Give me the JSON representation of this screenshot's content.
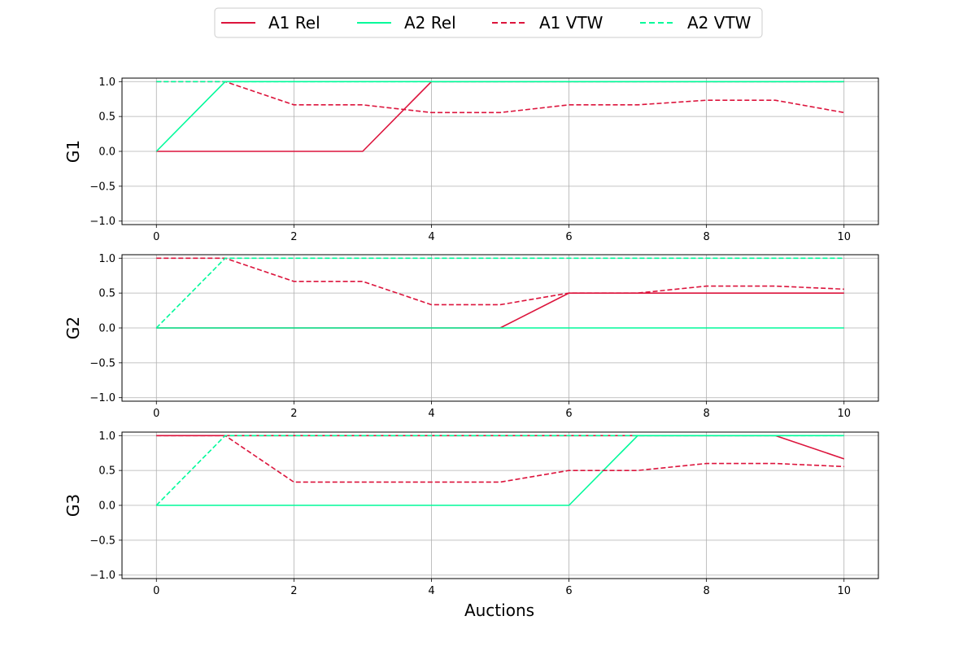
{
  "chart_data": {
    "type": "line",
    "xlabel": "Auctions",
    "legend": {
      "placement": "top-center",
      "entries": [
        {
          "label": "A1 Rel",
          "color": "#dc143c",
          "dashed": false
        },
        {
          "label": "A2 Rel",
          "color": "#00fa9a",
          "dashed": false
        },
        {
          "label": "A1 VTW",
          "color": "#dc143c",
          "dashed": true
        },
        {
          "label": "A2 VTW",
          "color": "#00fa9a",
          "dashed": true
        }
      ]
    },
    "xlim": [
      -0.5,
      10.5
    ],
    "ylim": [
      -1.05,
      1.05
    ],
    "xticks": [
      0,
      2,
      4,
      6,
      8,
      10
    ],
    "yticks": [
      -1.0,
      -0.5,
      0.0,
      0.5,
      1.0
    ],
    "ytick_labels": [
      "−1.0",
      "−0.5",
      "0.0",
      "0.5",
      "1.0"
    ],
    "grid": true,
    "x": [
      0,
      1,
      2,
      3,
      4,
      5,
      6,
      7,
      8,
      9,
      10
    ],
    "panels": [
      {
        "ylabel": "G1",
        "series": [
          {
            "name": "A1 Rel",
            "color": "#dc143c",
            "dashed": false,
            "values": [
              0,
              0,
              0,
              0,
              1,
              1,
              1,
              1,
              1,
              1,
              1
            ]
          },
          {
            "name": "A2 Rel",
            "color": "#00fa9a",
            "dashed": false,
            "values": [
              0,
              1,
              1,
              1,
              1,
              1,
              1,
              1,
              1,
              1,
              1
            ]
          },
          {
            "name": "A1 VTW",
            "color": "#dc143c",
            "dashed": true,
            "values": [
              1,
              1,
              0.667,
              0.667,
              0.556,
              0.556,
              0.667,
              0.667,
              0.733,
              0.733,
              0.556
            ]
          },
          {
            "name": "A2 VTW",
            "color": "#00fa9a",
            "dashed": true,
            "values": [
              1,
              1,
              1,
              1,
              1,
              1,
              1,
              1,
              1,
              1,
              1
            ]
          }
        ]
      },
      {
        "ylabel": "G2",
        "series": [
          {
            "name": "A1 Rel",
            "color": "#dc143c",
            "dashed": false,
            "values": [
              0,
              0,
              0,
              0,
              0,
              0,
              0.5,
              0.5,
              0.5,
              0.5,
              0.5
            ]
          },
          {
            "name": "A2 Rel",
            "color": "#00fa9a",
            "dashed": false,
            "values": [
              0,
              0,
              0,
              0,
              0,
              0,
              0,
              0,
              0,
              0,
              0
            ]
          },
          {
            "name": "A1 VTW",
            "color": "#dc143c",
            "dashed": true,
            "values": [
              1,
              1,
              0.667,
              0.667,
              0.333,
              0.333,
              0.5,
              0.5,
              0.6,
              0.6,
              0.556
            ]
          },
          {
            "name": "A2 VTW",
            "color": "#00fa9a",
            "dashed": true,
            "values": [
              0,
              1,
              1,
              1,
              1,
              1,
              1,
              1,
              1,
              1,
              1
            ]
          }
        ]
      },
      {
        "ylabel": "G3",
        "series": [
          {
            "name": "A1 Rel",
            "color": "#dc143c",
            "dashed": false,
            "values": [
              1,
              1,
              1,
              1,
              1,
              1,
              1,
              1,
              1,
              1,
              0.667
            ]
          },
          {
            "name": "A2 Rel",
            "color": "#00fa9a",
            "dashed": false,
            "values": [
              0,
              0,
              0,
              0,
              0,
              0,
              0,
              1,
              1,
              1,
              1
            ]
          },
          {
            "name": "A1 VTW",
            "color": "#dc143c",
            "dashed": true,
            "values": [
              1,
              1,
              0.333,
              0.333,
              0.333,
              0.333,
              0.5,
              0.5,
              0.6,
              0.6,
              0.556
            ]
          },
          {
            "name": "A2 VTW",
            "color": "#00fa9a",
            "dashed": true,
            "values": [
              0,
              1,
              1,
              1,
              1,
              1,
              1,
              1,
              1,
              1,
              1
            ]
          }
        ]
      }
    ]
  }
}
